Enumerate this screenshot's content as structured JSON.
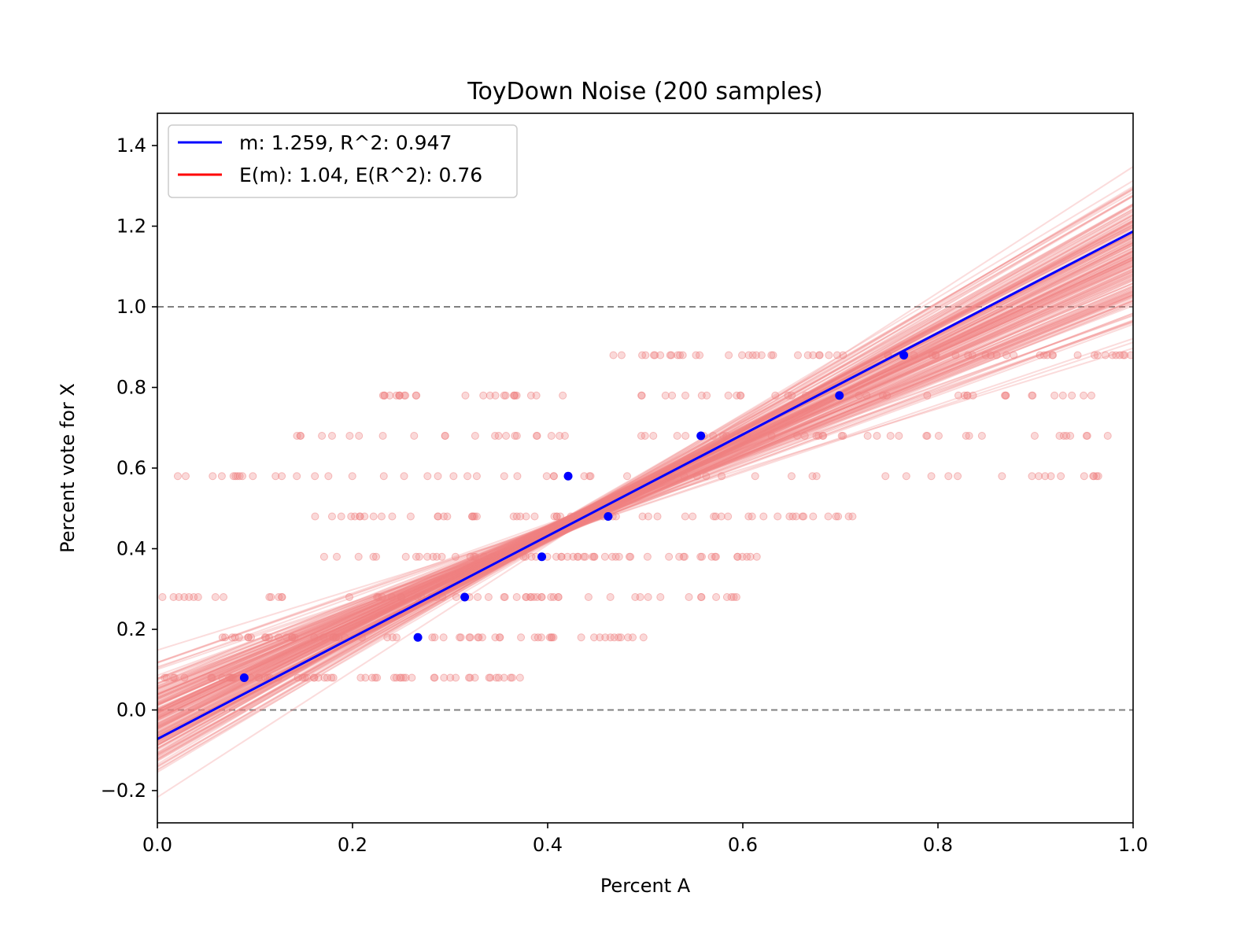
{
  "chart_data": {
    "type": "scatter",
    "title": "ToyDown Noise (200 samples)",
    "xlabel": "Percent A",
    "ylabel": "Percent vote for X",
    "xlim": [
      0.0,
      1.0
    ],
    "ylim": [
      -0.28,
      1.48
    ],
    "x_ticks": [
      "0.0",
      "0.2",
      "0.4",
      "0.6",
      "0.8",
      "1.0"
    ],
    "x_tick_values": [
      0.0,
      0.2,
      0.4,
      0.6,
      0.8,
      1.0
    ],
    "y_ticks": [
      "−0.2",
      "0.0",
      "0.2",
      "0.4",
      "0.6",
      "0.8",
      "1.0",
      "1.2",
      "1.4"
    ],
    "y_tick_values": [
      -0.2,
      0.0,
      0.2,
      0.4,
      0.6,
      0.8,
      1.0,
      1.2,
      1.4
    ],
    "reference_lines": [
      0.0,
      1.0
    ],
    "reference_line_color": "#808080",
    "grid": false,
    "legend_position": "top-left",
    "legend": [
      {
        "label": "m: 1.259, R^2: 0.947",
        "color": "#0000ff"
      },
      {
        "label": "E(m): 1.04, E(R^2): 0.76",
        "color": "#ff0000"
      }
    ],
    "series": [
      {
        "name": "m: 1.259, R^2: 0.947",
        "kind": "points-and-fit",
        "color": "#0000ff",
        "points": [
          {
            "x": 0.089,
            "y": 0.08
          },
          {
            "x": 0.267,
            "y": 0.18
          },
          {
            "x": 0.315,
            "y": 0.28
          },
          {
            "x": 0.394,
            "y": 0.38
          },
          {
            "x": 0.421,
            "y": 0.58
          },
          {
            "x": 0.462,
            "y": 0.48
          },
          {
            "x": 0.557,
            "y": 0.68
          },
          {
            "x": 0.699,
            "y": 0.78
          },
          {
            "x": 0.765,
            "y": 0.88
          }
        ],
        "fit": {
          "slope": 1.259,
          "intercept": -0.072
        }
      },
      {
        "name": "E(m): 1.04, E(R^2): 0.76",
        "kind": "noisy-samples",
        "color": "#f08080",
        "samples": 200,
        "mean_slope": 1.04,
        "mean_r2": 0.76,
        "slope_range": [
          0.7,
          1.6
        ],
        "pivot": {
          "x": 0.42,
          "y": 0.46
        },
        "y_levels": [
          0.08,
          0.18,
          0.28,
          0.38,
          0.48,
          0.58,
          0.68,
          0.78,
          0.88
        ],
        "level_x_ranges": [
          [
            0.0,
            0.38
          ],
          [
            0.06,
            0.5
          ],
          [
            0.0,
            0.61
          ],
          [
            0.17,
            0.64
          ],
          [
            0.16,
            0.73
          ],
          [
            0.0,
            1.0
          ],
          [
            0.14,
            1.0
          ],
          [
            0.22,
            1.0
          ],
          [
            0.45,
            1.0
          ]
        ]
      }
    ]
  }
}
